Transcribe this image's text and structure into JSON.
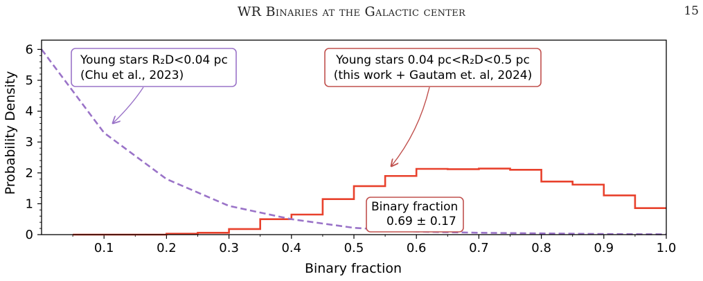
{
  "header": {
    "running_title": "WR Binaries at the Galactic center",
    "page_number": "15"
  },
  "chart_data": {
    "type": "line",
    "xlabel": "Binary fraction",
    "ylabel": "Probability Density",
    "xlim": [
      0.0,
      1.0
    ],
    "ylim": [
      0,
      6.3
    ],
    "x_ticks": [
      "0.1",
      "0.2",
      "0.3",
      "0.4",
      "0.5",
      "0.6",
      "0.7",
      "0.8",
      "0.9",
      "1.0"
    ],
    "y_ticks": [
      "0",
      "1",
      "2",
      "3",
      "4",
      "5",
      "6"
    ],
    "grid": false,
    "series": [
      {
        "style": "step",
        "color": "#e8412c",
        "bin_edges": [
          0.05,
          0.1,
          0.15,
          0.2,
          0.25,
          0.3,
          0.35,
          0.4,
          0.45,
          0.5,
          0.55,
          0.6,
          0.65,
          0.7,
          0.75,
          0.8,
          0.85,
          0.9,
          0.95,
          1.0
        ],
        "values": [
          0.0,
          0.0,
          0.0,
          0.03,
          0.06,
          0.18,
          0.5,
          0.65,
          1.15,
          1.57,
          1.9,
          2.13,
          2.12,
          2.14,
          2.1,
          1.72,
          1.62,
          1.27,
          0.86
        ]
      },
      {
        "style": "dashed",
        "color": "#9a73c8",
        "x": [
          0.0,
          0.1,
          0.2,
          0.3,
          0.4,
          0.5,
          0.6,
          0.7,
          0.8,
          0.9,
          1.0
        ],
        "y": [
          6.0,
          3.3,
          1.8,
          0.93,
          0.5,
          0.22,
          0.1,
          0.06,
          0.04,
          0.02,
          0.01
        ]
      }
    ],
    "annotations": [
      {
        "id": "chu",
        "lines": [
          "Young stars R₂D<0.04 pc",
          "(Chu et al., 2023)"
        ],
        "border_color": "#9a73c8",
        "arrow_to": [
          0.11,
          3.5
        ]
      },
      {
        "id": "this_work",
        "lines": [
          "Young stars 0.04 pc<R₂D<0.5 pc",
          "(this work + Gautam et. al, 2024)"
        ],
        "border_color": "#c0504d",
        "arrow_to": [
          0.56,
          2.2
        ]
      },
      {
        "id": "binary_fraction",
        "lines": [
          "Binary fraction",
          "0.69 ± 0.17"
        ],
        "border_color": "#c0504d"
      }
    ]
  }
}
